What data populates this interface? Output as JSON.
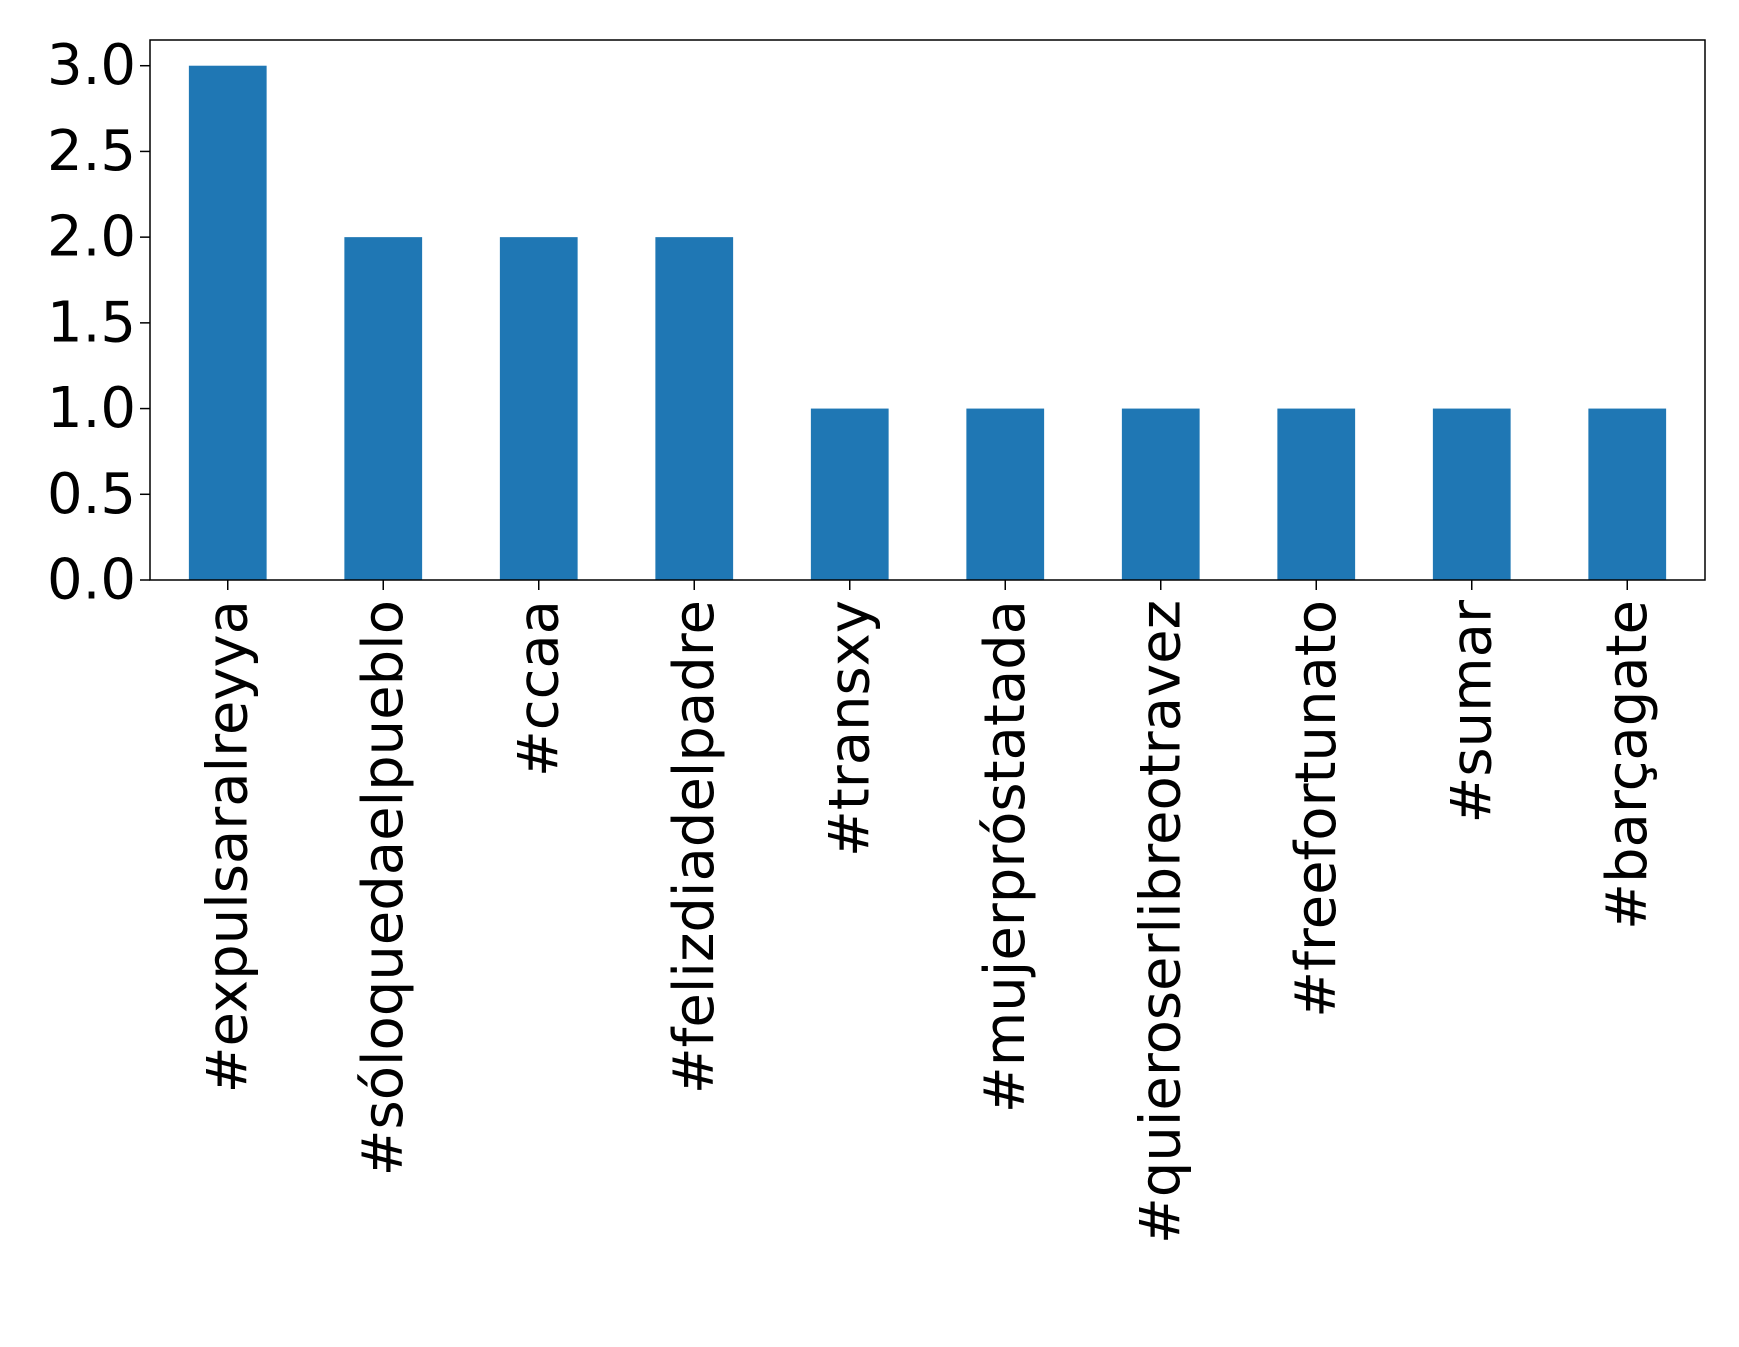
{
  "chart_data": {
    "type": "bar",
    "title": "",
    "xlabel": "",
    "ylabel": "",
    "categories": [
      "#expulsaralreyya",
      "#sóloquedaelpueblo",
      "#ccaa",
      "#felizdiadelpadre",
      "#transxy",
      "#mujerpróstatada",
      "#quieroserlibreotravez",
      "#freefortunato",
      "#sumar",
      "#barçagate"
    ],
    "values": [
      3,
      2,
      2,
      2,
      1,
      1,
      1,
      1,
      1,
      1
    ],
    "ylim": [
      0,
      3.15
    ],
    "yticks": [
      "0.0",
      "0.5",
      "1.0",
      "1.5",
      "2.0",
      "2.5",
      "3.0"
    ],
    "grid": false,
    "bar_color": "#1f77b4"
  }
}
